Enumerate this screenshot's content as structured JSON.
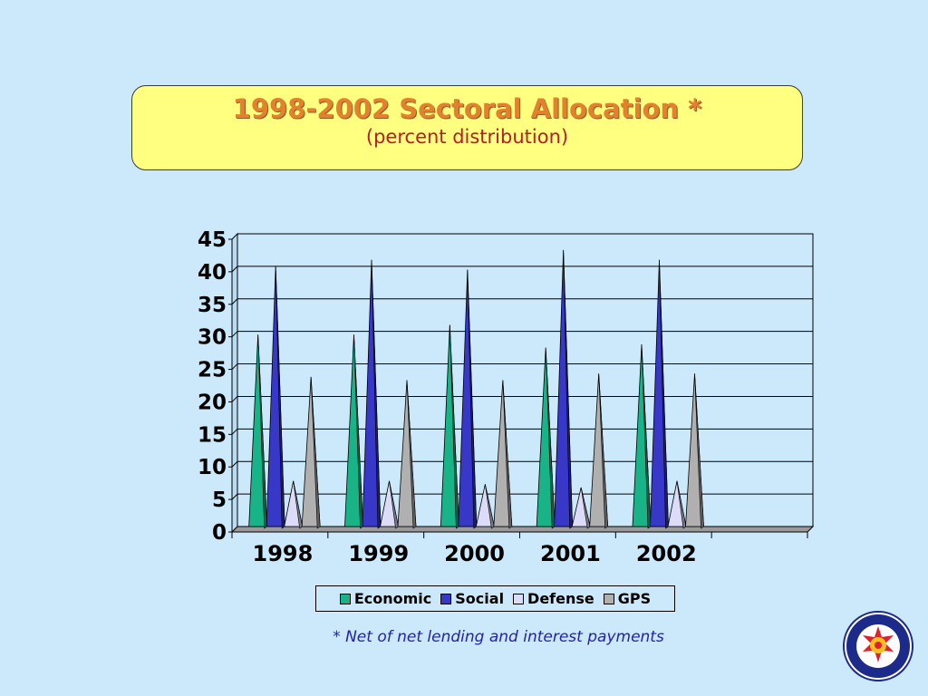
{
  "slide": {
    "title": "1998-2002 Sectoral Allocation *",
    "subtitle": "(percent distribution)",
    "footnote": "* Net of net lending and interest payments",
    "seal_name": "seal-icon"
  },
  "colors": {
    "background": "#cce9fb",
    "title_box": "#ffff80",
    "title_text": "#e2812e",
    "subtitle_text": "#b4202a",
    "footnote_text": "#2222aa"
  },
  "chart_data": {
    "type": "bar",
    "bar_shape": "3d-cone",
    "categories": [
      "1998",
      "1999",
      "2000",
      "2001",
      "2002"
    ],
    "series": [
      {
        "name": "Economic",
        "color": "#18b488",
        "values": [
          29.5,
          29.5,
          31,
          27.5,
          28
        ]
      },
      {
        "name": "Social",
        "color": "#3737c8",
        "values": [
          40,
          41,
          39.5,
          42.5,
          41
        ]
      },
      {
        "name": "Defense",
        "color": "#dcdcf8",
        "values": [
          7,
          7,
          6.5,
          6,
          7
        ]
      },
      {
        "name": "GPS",
        "color": "#b0b0b0",
        "values": [
          23,
          22.5,
          22.5,
          23.5,
          23.5
        ]
      }
    ],
    "yticks": [
      "0",
      "5",
      "10",
      "15",
      "20",
      "25",
      "30",
      "35",
      "40",
      "45"
    ],
    "ylim": [
      0,
      45
    ],
    "title": "",
    "xlabel": "",
    "ylabel": "",
    "grid": true,
    "legend": "bottom"
  }
}
